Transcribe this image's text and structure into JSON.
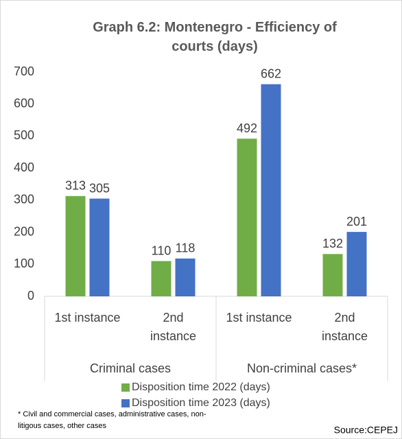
{
  "chart_data": {
    "type": "bar",
    "title": "Graph 6.2: Montenegro - Efficiency of courts (days)",
    "categories": [
      "1st instance",
      "2nd instance",
      "1st instance",
      "2nd instance"
    ],
    "groups": [
      {
        "name": "Criminal cases",
        "span": [
          0,
          1
        ]
      },
      {
        "name": "Non-criminal cases*",
        "span": [
          2,
          3
        ]
      }
    ],
    "series": [
      {
        "name": "Disposition time 2022 (days)",
        "color": "#70ad47",
        "values": [
          313,
          110,
          492,
          132
        ]
      },
      {
        "name": "Disposition time 2023 (days)",
        "color": "#4472c4",
        "values": [
          305,
          118,
          662,
          201
        ]
      }
    ],
    "ylim": [
      0,
      700
    ],
    "yticks": [
      0,
      100,
      200,
      300,
      400,
      500,
      600,
      700
    ],
    "grid": false,
    "legend": "bottom",
    "footnote": "* Civil and commercial cases, administrative cases, non-litigous cases, other cases",
    "source": "Source:CEPEJ"
  }
}
